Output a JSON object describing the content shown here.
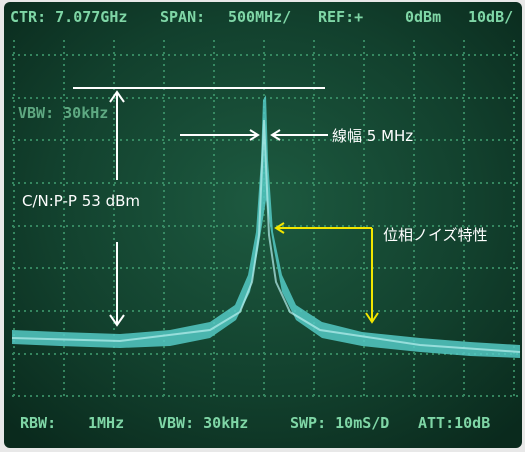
{
  "screen": {
    "header": [
      "CTR: 7.077GHz",
      "SPAN:",
      "500MHz/",
      "REF:+",
      "0dBm",
      "10dB/"
    ],
    "overlay_label": "VBW: 30kHz",
    "footer": [
      "RBW:",
      "1MHz",
      "VBW: 30kHz",
      "SWP: 10mS/D",
      "ATT:10dB"
    ]
  },
  "annotations": {
    "linewidth": "線幅  5 MHz",
    "cn": "C/N:P-P 53 dBm",
    "phase_noise": "位相ノイズ特性"
  }
}
